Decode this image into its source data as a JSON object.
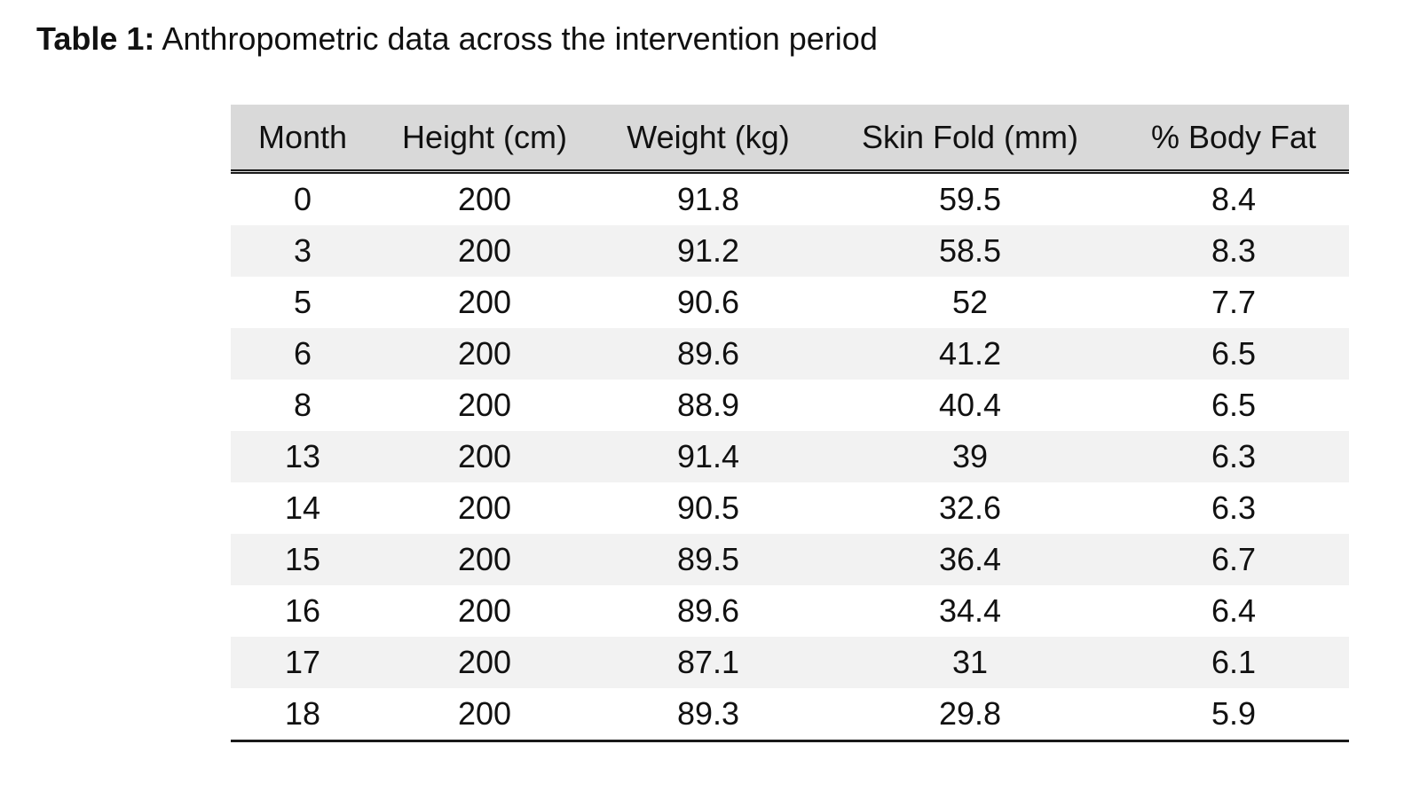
{
  "caption": {
    "label": "Table 1:",
    "text": " Anthropometric data across the intervention period"
  },
  "table": {
    "headers": [
      "Month",
      "Height (cm)",
      "Weight (kg)",
      "Skin Fold (mm)",
      "% Body Fat"
    ],
    "rows": [
      [
        "0",
        "200",
        "91.8",
        "59.5",
        "8.4"
      ],
      [
        "3",
        "200",
        "91.2",
        "58.5",
        "8.3"
      ],
      [
        "5",
        "200",
        "90.6",
        "52",
        "7.7"
      ],
      [
        "6",
        "200",
        "89.6",
        "41.2",
        "6.5"
      ],
      [
        "8",
        "200",
        "88.9",
        "40.4",
        "6.5"
      ],
      [
        "13",
        "200",
        "91.4",
        "39",
        "6.3"
      ],
      [
        "14",
        "200",
        "90.5",
        "32.6",
        "6.3"
      ],
      [
        "15",
        "200",
        "89.5",
        "36.4",
        "6.7"
      ],
      [
        "16",
        "200",
        "89.6",
        "34.4",
        "6.4"
      ],
      [
        "17",
        "200",
        "87.1",
        "31",
        "6.1"
      ],
      [
        "18",
        "200",
        "89.3",
        "29.8",
        "5.9"
      ]
    ]
  },
  "colors": {
    "header_background": "#d9d9d9",
    "stripe_background": "#f2f2f2",
    "rule_color": "#1a1a1a"
  }
}
